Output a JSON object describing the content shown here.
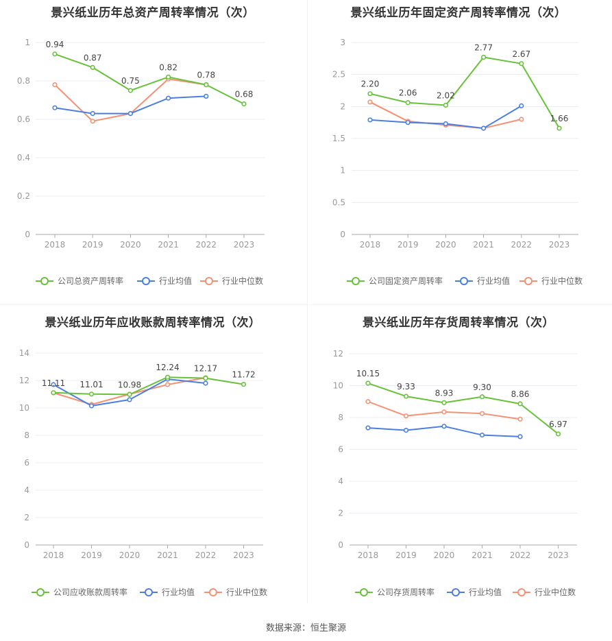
{
  "source": "数据来源：恒生聚源",
  "colors": {
    "company": "#67c23a",
    "avg": "#4a7fe0",
    "median": "#f59073"
  },
  "chart_data": [
    {
      "type": "line",
      "title": "景兴纸业历年总资产周转率情况（次）",
      "categories": [
        "2018",
        "2019",
        "2020",
        "2021",
        "2022",
        "2023"
      ],
      "ylim": [
        0,
        1
      ],
      "yticks": [
        "0",
        "0.2",
        "0.4",
        "0.6",
        "0.8",
        "1"
      ],
      "grid": true,
      "legend_position": "bottom",
      "series": [
        {
          "name": "公司总资产周转率",
          "values": [
            0.94,
            0.87,
            0.75,
            0.82,
            0.78,
            0.68
          ],
          "labels": [
            "0.94",
            "0.87",
            "0.75",
            "0.82",
            "0.78",
            "0.68"
          ]
        },
        {
          "name": "行业均值",
          "values": [
            0.66,
            0.63,
            0.63,
            0.71,
            0.72,
            null
          ]
        },
        {
          "name": "行业中位数",
          "values": [
            0.78,
            0.59,
            0.63,
            0.81,
            0.78,
            null
          ]
        }
      ]
    },
    {
      "type": "line",
      "title": "景兴纸业历年固定资产周转率情况（次）",
      "categories": [
        "2018",
        "2019",
        "2020",
        "2021",
        "2022",
        "2023"
      ],
      "ylim": [
        0,
        3
      ],
      "yticks": [
        "0",
        "0.5",
        "1",
        "1.5",
        "2",
        "2.5",
        "3"
      ],
      "grid": true,
      "legend_position": "bottom",
      "series": [
        {
          "name": "公司固定资产周转率",
          "values": [
            2.2,
            2.06,
            2.02,
            2.77,
            2.67,
            1.66
          ],
          "labels": [
            "2.20",
            "2.06",
            "2.02",
            "2.77",
            "2.67",
            "1.66"
          ]
        },
        {
          "name": "行业均值",
          "values": [
            1.79,
            1.75,
            1.73,
            1.66,
            2.01,
            null
          ]
        },
        {
          "name": "行业中位数",
          "values": [
            2.07,
            1.77,
            1.71,
            1.66,
            1.8,
            null
          ]
        }
      ]
    },
    {
      "type": "line",
      "title": "景兴纸业历年应收账款周转率情况（次）",
      "categories": [
        "2018",
        "2019",
        "2020",
        "2021",
        "2022",
        "2023"
      ],
      "ylim": [
        0,
        14
      ],
      "yticks": [
        "0",
        "2",
        "4",
        "6",
        "8",
        "10",
        "12",
        "14"
      ],
      "grid": true,
      "legend_position": "bottom",
      "series": [
        {
          "name": "公司应收账款周转率",
          "values": [
            11.11,
            11.01,
            10.98,
            12.24,
            12.17,
            11.72
          ],
          "labels": [
            "11.11",
            "11.01",
            "10.98",
            "12.24",
            "12.17",
            "11.72"
          ]
        },
        {
          "name": "行业均值",
          "values": [
            11.7,
            10.15,
            10.6,
            12.1,
            11.8,
            null
          ]
        },
        {
          "name": "行业中位数",
          "values": [
            11.1,
            10.25,
            11.0,
            11.7,
            12.2,
            null
          ]
        }
      ]
    },
    {
      "type": "line",
      "title": "景兴纸业历年存货周转率情况（次）",
      "categories": [
        "2018",
        "2019",
        "2020",
        "2021",
        "2022",
        "2023"
      ],
      "ylim": [
        0,
        12
      ],
      "yticks": [
        "0",
        "2",
        "4",
        "6",
        "8",
        "10",
        "12"
      ],
      "grid": true,
      "legend_position": "bottom",
      "series": [
        {
          "name": "公司存货周转率",
          "values": [
            10.15,
            9.33,
            8.93,
            9.3,
            8.86,
            6.97
          ],
          "labels": [
            "10.15",
            "9.33",
            "8.93",
            "9.30",
            "8.86",
            "6.97"
          ]
        },
        {
          "name": "行业均值",
          "values": [
            7.35,
            7.2,
            7.45,
            6.9,
            6.8,
            null
          ]
        },
        {
          "name": "行业中位数",
          "values": [
            9.0,
            8.1,
            8.35,
            8.25,
            7.9,
            null
          ]
        }
      ]
    }
  ]
}
